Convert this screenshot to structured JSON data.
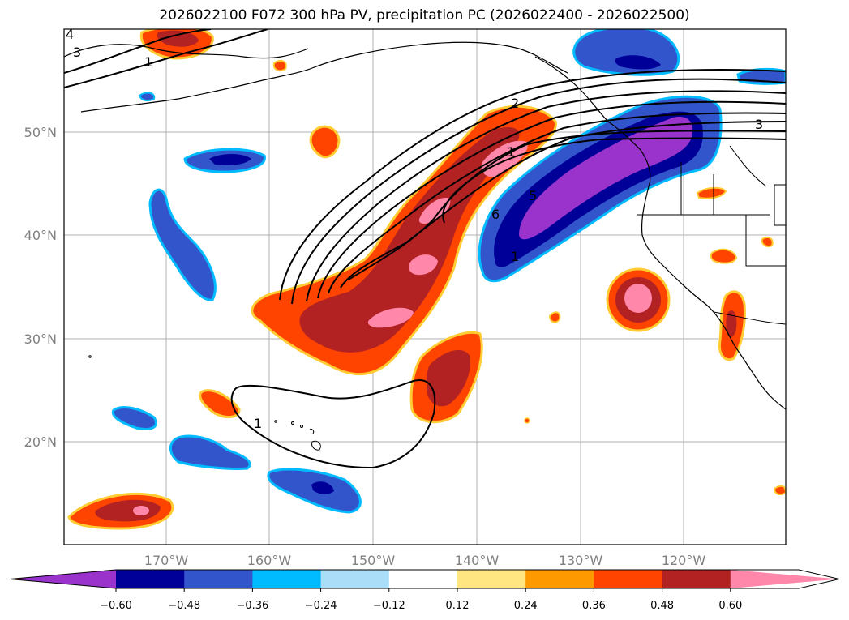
{
  "title": "2026022100 F072 300 hPa PV, precipitation PC (2026022400 - 2026022500)",
  "lon_labels": [
    "170°W",
    "160°W",
    "150°W",
    "140°W",
    "130°W",
    "120°W"
  ],
  "lat_labels": [
    "50°N",
    "40°N",
    "30°N",
    "20°N"
  ],
  "contour_labels": [
    "3",
    "1",
    "2",
    "1",
    "5",
    "6",
    "1",
    "3",
    "4",
    "1"
  ],
  "colorbar": {
    "colors": [
      "#9933cc",
      "#000099",
      "#3355cc",
      "#00bbff",
      "#aaddf7",
      "#ffffff",
      "#ffe680",
      "#ff9900",
      "#ff4400",
      "#b22222",
      "#ff88aa"
    ],
    "tick_labels": [
      "−0.60",
      "−0.48",
      "−0.36",
      "−0.24",
      "−0.12",
      "0.12",
      "0.24",
      "0.36",
      "0.48",
      "0.60"
    ]
  }
}
